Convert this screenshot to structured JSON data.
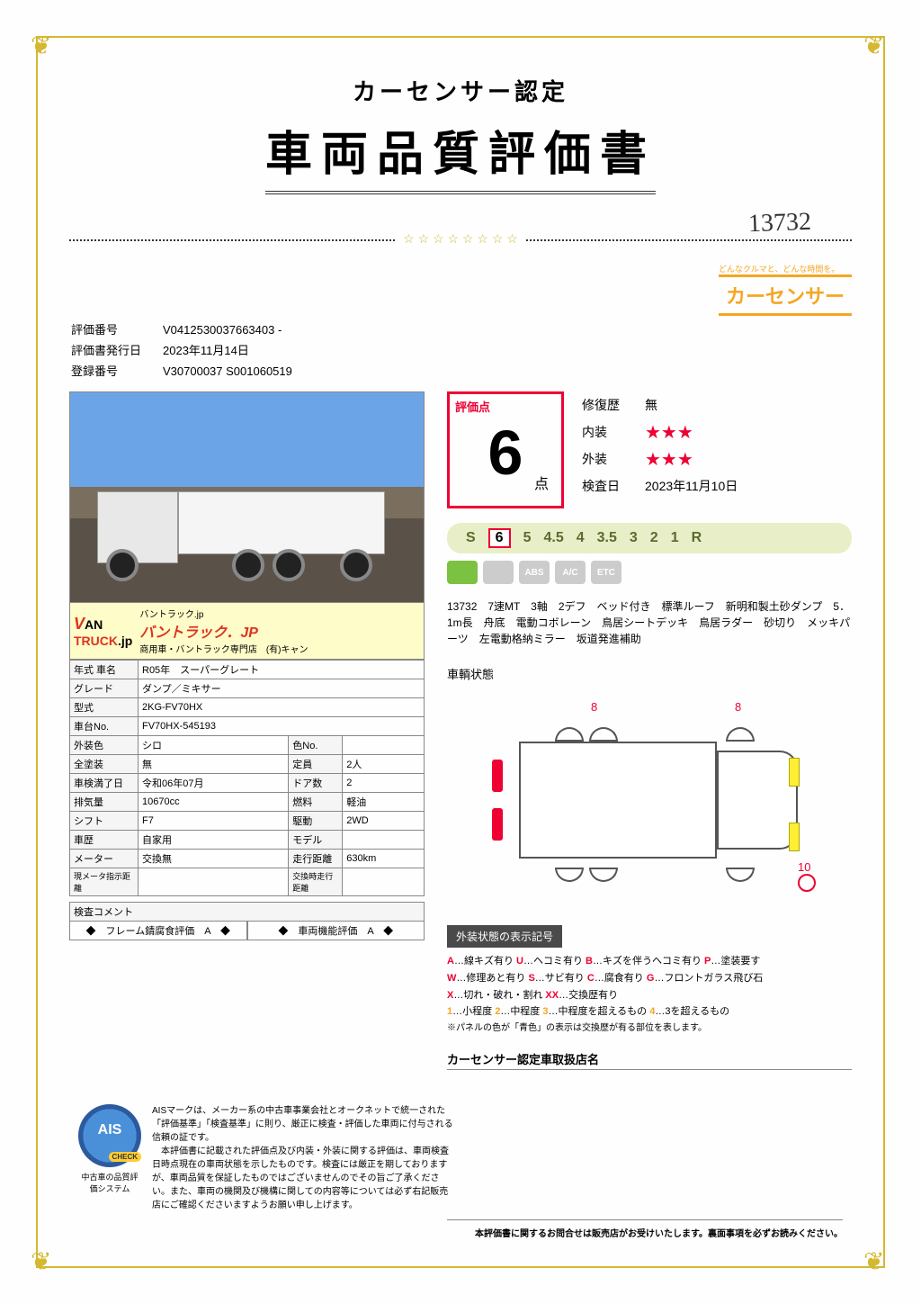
{
  "title_small": "カーセンサー認定",
  "title_big": "車両品質評価書",
  "handwritten": "13732",
  "brand_tag": "どんなクルマと、どんな時間を。",
  "brand_logo": "カーセンサー",
  "meta": {
    "eval_no_label": "評価番号",
    "eval_no": "V0412530037663403 -",
    "issue_label": "評価書発行日",
    "issue": "2023年11月14日",
    "reg_label": "登録番号",
    "reg": "V30700037 S001060519"
  },
  "photo_banner": {
    "logo_small": "バントラック.jp",
    "main": "バントラック．JP",
    "sub": "商用車・バントラック専門店　(有)キャン"
  },
  "spec": {
    "r1a": "年式 車名",
    "r1v": "R05年　スーパーグレート",
    "r2a": "グレード",
    "r2v": "ダンプ／ミキサー",
    "r3a": "型式",
    "r3v": "2KG-FV70HX",
    "r4a": "車台No.",
    "r4v": "FV70HX-545193",
    "r5a": "外装色",
    "r5v": "シロ",
    "r5b": "色No.",
    "r5w": "",
    "r6a": "全塗装",
    "r6v": "無",
    "r6b": "定員",
    "r6w": "2人",
    "r7a": "車検満了日",
    "r7v": "令和06年07月",
    "r7b": "ドア数",
    "r7w": "2",
    "r8a": "排気量",
    "r8v": "10670cc",
    "r8b": "燃料",
    "r8w": "軽油",
    "r9a": "シフト",
    "r9v": "F7",
    "r9b": "駆動",
    "r9w": "2WD",
    "r10a": "車歴",
    "r10v": "自家用",
    "r10b": "モデル",
    "r10w": "",
    "r11a": "メーター",
    "r11v": "交換無",
    "r11b": "走行距離",
    "r11w": "630km",
    "r12a": "現メータ指示距離",
    "r12v": "",
    "r12b": "交換時走行距離",
    "r12w": ""
  },
  "comment_label": "検査コメント",
  "comment_a": "◆　フレーム錆腐食評価　A　◆",
  "comment_b": "◆　車両機能評価　A　◆",
  "score": {
    "label": "評価点",
    "value": "6",
    "unit": "点",
    "repair_k": "修復歴",
    "repair_v": "無",
    "interior_k": "内装",
    "interior_stars": 3,
    "exterior_k": "外装",
    "exterior_stars": 3,
    "inspect_k": "検査日",
    "inspect_v": "2023年11月10日"
  },
  "grades": [
    "S",
    "6",
    "5",
    "4.5",
    "4",
    "3.5",
    "3",
    "2",
    "1",
    "R"
  ],
  "grade_selected": "6",
  "icons": [
    {
      "txt": "",
      "bg": "#7bc142"
    },
    {
      "txt": "",
      "bg": "#ccc"
    },
    {
      "txt": "ABS",
      "bg": "#ccc"
    },
    {
      "txt": "A/C",
      "bg": "#ccc"
    },
    {
      "txt": "ETC",
      "bg": "#ccc"
    }
  ],
  "desc": "13732　7速MT　3軸　2デフ　ベッド付き　標準ルーフ　新明和製土砂ダンプ　5．1m長　舟底　電動コボレーン　鳥居シートデッキ　鳥居ラダー　砂切り　メッキパーツ　左電動格納ミラー　坂道発進補助",
  "diagram_label": "車輌状態",
  "marker_8": "8",
  "marker_10": "10",
  "legend_hdr": "外装状態の表示記号",
  "legend": {
    "l1": "…線キズ有り",
    "l1a": "A",
    "l1b": "U",
    "l1c": "…ヘコミ有り",
    "l1d": "B",
    "l1e": "…キズを伴うヘコミ有り",
    "l1f": "P",
    "l1g": "…塗装要す",
    "l2a": "W",
    "l2": "…修理あと有り",
    "l2b": "S",
    "l2c": "…サビ有り",
    "l2d": "C",
    "l2e": "…腐食有り",
    "l2f": "G",
    "l2g": "…フロントガラス飛び石",
    "l3a": "X",
    "l3": "…切れ・破れ・割れ",
    "l3b": "XX",
    "l3c": "…交換歴有り",
    "l4a": "1",
    "l4": "…小程度",
    "l4b": "2",
    "l4c": "…中程度",
    "l4d": "3",
    "l4e": "…中程度を超えるもの",
    "l4f": "4",
    "l4g": "…3を超えるもの",
    "l5": "※パネルの色が「青色」の表示は交換歴が有る部位を表します。"
  },
  "dealer_hdr": "カーセンサー認定車取扱店名",
  "ais": {
    "badge": "AIS",
    "check": "CHECK",
    "sub": "中古車の品質評価システム",
    "text": "AISマークは、メーカー系の中古車事業会社とオークネットで統一された「評価基準」「検査基準」に則り、厳正に検査・評価した車両に付与される信頼の証です。\n　本評価書に記載された評価点及び内装・外装に関する評価は、車両検査日時点現在の車両状態を示したものです。検査には厳正を期しておりますが、車両品質を保証したものではございませんのでその旨ご了承ください。また、車両の機関及び機構に関しての内容等については必ず右記販売店にご確認くださいますようお願い申し上げます。"
  },
  "footnote": "本評価書に関するお問合せは販売店がお受けいたします。裏面事項を必ずお読みください。",
  "colors": {
    "gold": "#d4b830",
    "orange": "#f5a623",
    "red": "#e03",
    "green": "#7bc142"
  }
}
